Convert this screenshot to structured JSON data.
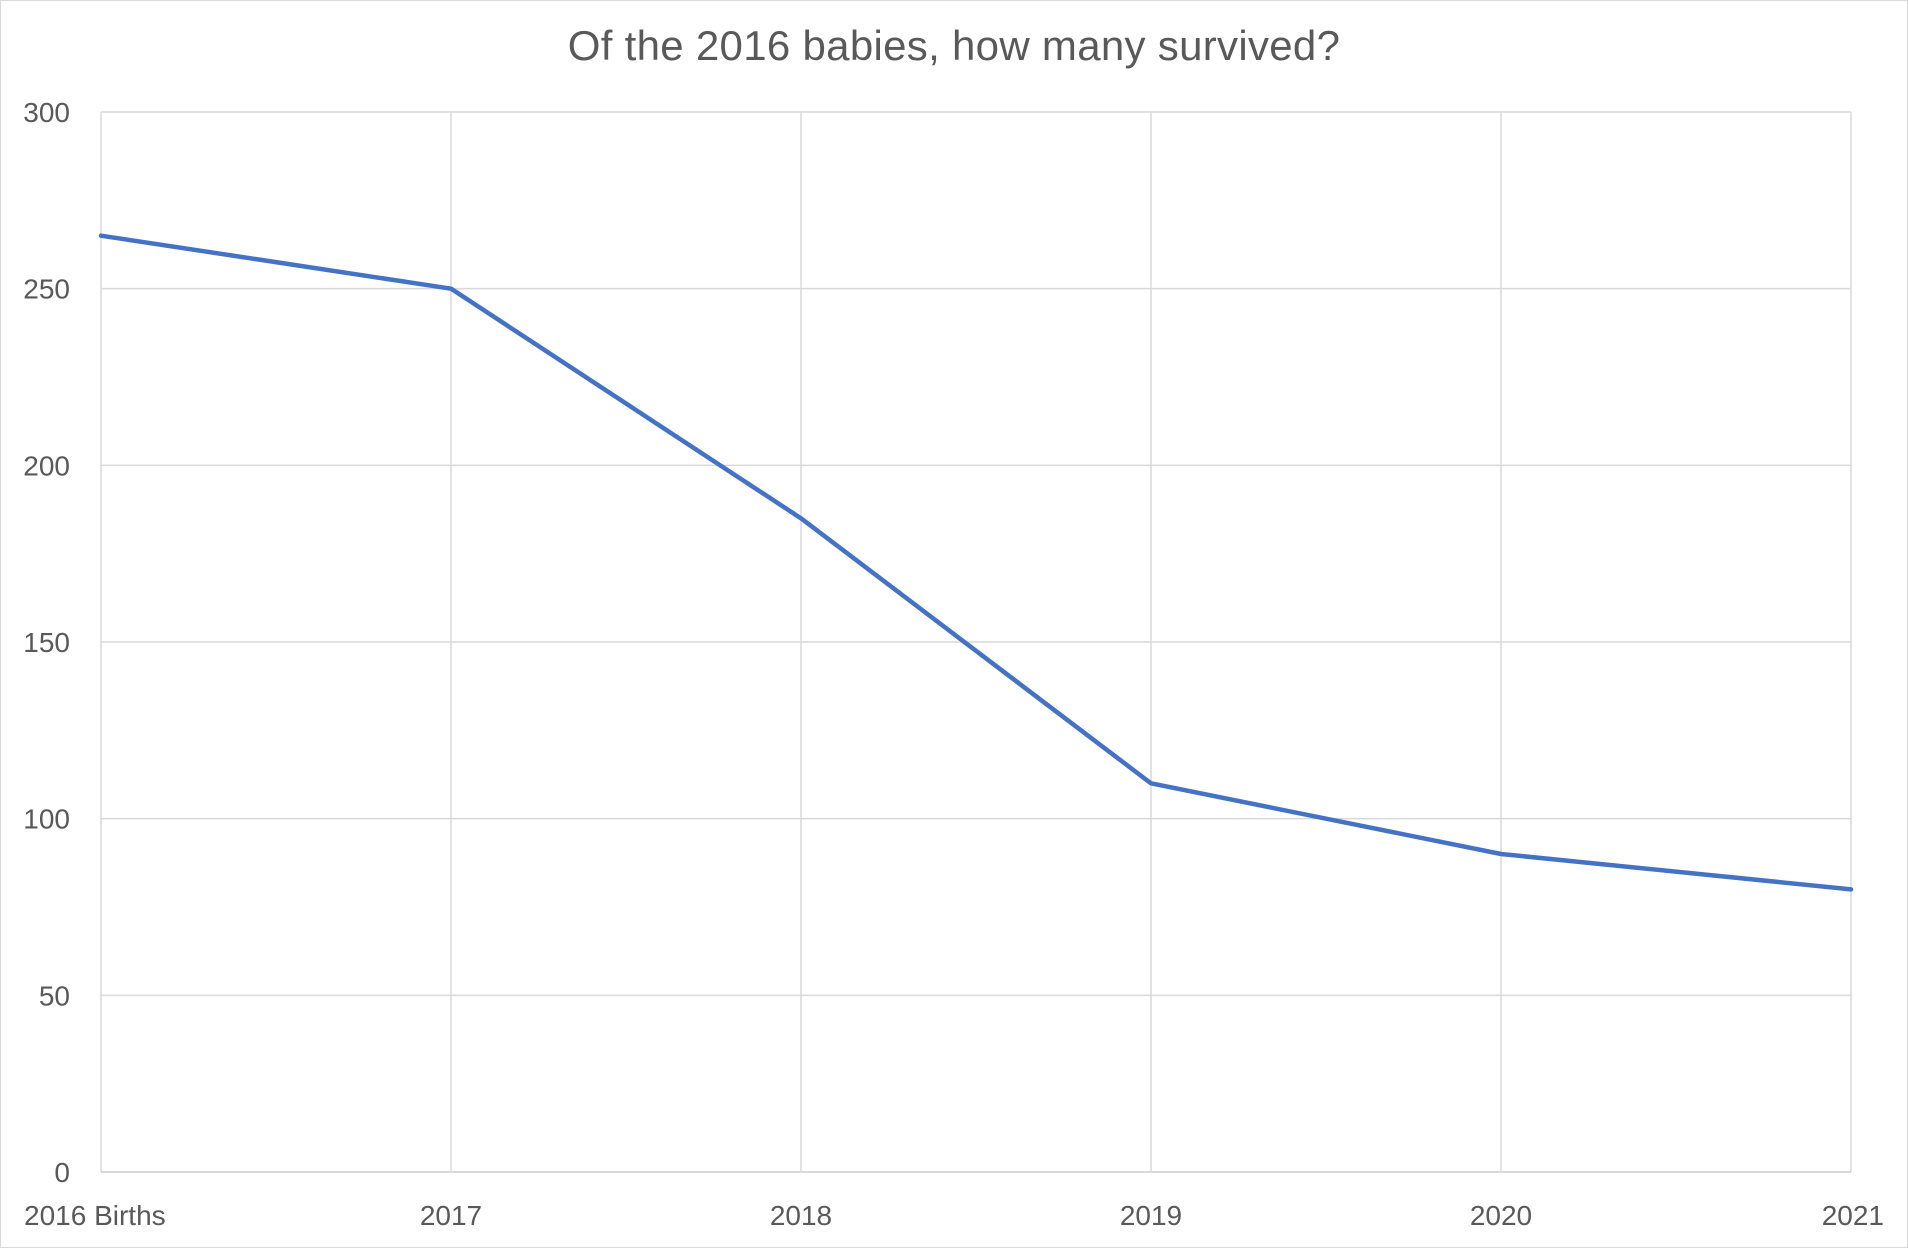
{
  "chart_data": {
    "type": "line",
    "title": "Of the 2016 babies, how many survived?",
    "xlabel": "",
    "ylabel": "",
    "categories": [
      "2016 Births",
      "2017",
      "2018",
      "2019",
      "2020",
      "2021"
    ],
    "series": [
      {
        "values": [
          265,
          250,
          185,
          110,
          90,
          80
        ]
      }
    ],
    "ylim": [
      0,
      300
    ],
    "yticks": [
      0,
      50,
      100,
      150,
      200,
      250,
      300
    ],
    "grid": true,
    "legend": "none",
    "colors": {
      "line": "#4472c4",
      "grid": "#d9d9d9",
      "text": "#595959"
    }
  }
}
